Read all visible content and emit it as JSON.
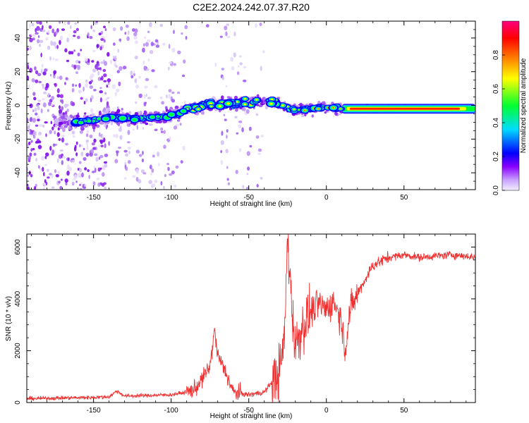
{
  "title": "C2E2.2024.242.07.37.R20",
  "chart_data": [
    {
      "type": "heatmap",
      "xlabel": "Height of straight line (km)",
      "ylabel": "Frequency (Hz)",
      "xlim": [
        -193,
        96
      ],
      "ylim": [
        -50,
        50
      ],
      "x_ticks": [
        -150,
        -100,
        -50,
        0,
        50
      ],
      "y_ticks": [
        -40,
        -20,
        0,
        20,
        40
      ],
      "colorbar": {
        "label": "Normalized spectral amplitude",
        "range": [
          0,
          1
        ],
        "ticks": [
          "0.0",
          "0.2",
          "0.4",
          "0.6",
          "0.8"
        ],
        "colors": [
          "#f4eefc",
          "#8a00ff",
          "#0000ff",
          "#00dcff",
          "#00ff30",
          "#ffff00",
          "#ff8000",
          "#ff0000",
          "#ff0080"
        ]
      },
      "ridge": {
        "x": [
          -163,
          -150,
          -140,
          -120,
          -100,
          -90,
          -80,
          -70,
          -60,
          -50,
          -40,
          -30,
          -20,
          -10,
          0,
          10,
          20,
          50,
          80,
          96
        ],
        "y": [
          -10,
          -9,
          -7,
          -8,
          -6,
          -3,
          0,
          1,
          1,
          2,
          3,
          1,
          -3,
          -2,
          -1,
          -2,
          -2,
          -2,
          -2,
          -2
        ]
      }
    },
    {
      "type": "line",
      "xlabel": "Height of straight line (km)",
      "ylabel": "SNR (10 * v/v)",
      "xlim": [
        -193,
        96
      ],
      "ylim": [
        0,
        6500
      ],
      "x_ticks": [
        -150,
        -100,
        -50,
        0,
        50
      ],
      "y_ticks": [
        0,
        2000,
        4000,
        6000
      ],
      "color": "#f03030",
      "series": [
        {
          "x": [
            -193,
            -150,
            -140,
            -135,
            -130,
            -100,
            -90,
            -85,
            -80,
            -75,
            -72,
            -70,
            -65,
            -60,
            -50,
            -40,
            -30,
            -27,
            -25,
            -22,
            -20,
            -15,
            -10,
            -5,
            0,
            5,
            10,
            12,
            15,
            20,
            30,
            40,
            50,
            60,
            70,
            80,
            90,
            96
          ],
          "y": [
            150,
            200,
            220,
            450,
            250,
            300,
            400,
            500,
            900,
            1400,
            2800,
            1800,
            1200,
            400,
            300,
            400,
            1200,
            2500,
            6400,
            3500,
            2200,
            3000,
            3500,
            3800,
            3600,
            3900,
            3100,
            2000,
            3500,
            4200,
            5300,
            5600,
            5700,
            5600,
            5650,
            5700,
            5650,
            5600
          ]
        }
      ]
    }
  ]
}
